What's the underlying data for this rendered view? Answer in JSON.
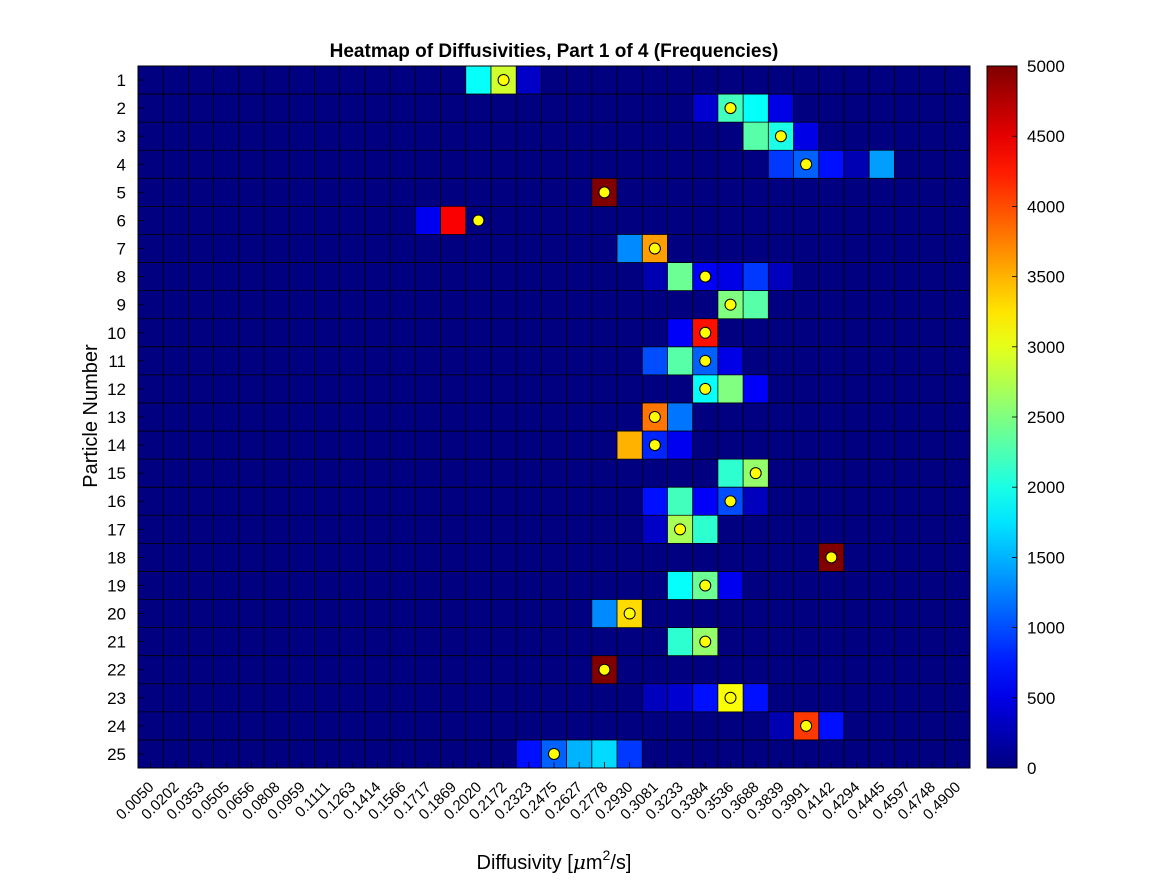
{
  "chart_data": {
    "type": "heatmap",
    "title": "Heatmap of Diffusivities, Part 1 of 4 (Frequencies)",
    "xlabel": "Diffusivity [μm²/s]",
    "xlabel_parts": {
      "pre": "Diffusivity [",
      "mu": "μ",
      "unit": "m",
      "sup": "2",
      "post": "/s]"
    },
    "ylabel": "Particle Number",
    "x_tick_labels": [
      "0.0050",
      "0.0202",
      "0.0353",
      "0.0505",
      "0.0656",
      "0.0808",
      "0.0959",
      "0.1111",
      "0.1263",
      "0.1414",
      "0.1566",
      "0.1717",
      "0.1869",
      "0.2020",
      "0.2172",
      "0.2323",
      "0.2475",
      "0.2627",
      "0.2778",
      "0.2930",
      "0.3081",
      "0.3233",
      "0.3384",
      "0.3536",
      "0.3688",
      "0.3839",
      "0.3991",
      "0.4142",
      "0.4294",
      "0.4445",
      "0.4597",
      "0.4748",
      "0.4900"
    ],
    "y_tick_labels": [
      "1",
      "2",
      "3",
      "4",
      "5",
      "6",
      "7",
      "8",
      "9",
      "10",
      "11",
      "12",
      "13",
      "14",
      "15",
      "16",
      "17",
      "18",
      "19",
      "20",
      "21",
      "22",
      "23",
      "24",
      "25"
    ],
    "colorbar": {
      "min": 0,
      "max": 5000,
      "ticks": [
        0,
        500,
        1000,
        1500,
        2000,
        2500,
        3000,
        3500,
        4000,
        4500,
        5000
      ],
      "colormap": "jet"
    },
    "cells": [
      {
        "row": 1,
        "col": 14,
        "value": 1900
      },
      {
        "row": 1,
        "col": 15,
        "value": 2900
      },
      {
        "row": 1,
        "col": 16,
        "value": 350
      },
      {
        "row": 2,
        "col": 23,
        "value": 400
      },
      {
        "row": 2,
        "col": 24,
        "value": 2200
      },
      {
        "row": 2,
        "col": 25,
        "value": 1900
      },
      {
        "row": 2,
        "col": 26,
        "value": 500
      },
      {
        "row": 3,
        "col": 25,
        "value": 2300
      },
      {
        "row": 3,
        "col": 26,
        "value": 2000
      },
      {
        "row": 3,
        "col": 27,
        "value": 500
      },
      {
        "row": 4,
        "col": 26,
        "value": 900
      },
      {
        "row": 4,
        "col": 27,
        "value": 1100
      },
      {
        "row": 4,
        "col": 28,
        "value": 700
      },
      {
        "row": 4,
        "col": 29,
        "value": 250
      },
      {
        "row": 4,
        "col": 30,
        "value": 1400
      },
      {
        "row": 5,
        "col": 19,
        "value": 5000
      },
      {
        "row": 6,
        "col": 12,
        "value": 550
      },
      {
        "row": 6,
        "col": 13,
        "value": 4400
      },
      {
        "row": 7,
        "col": 20,
        "value": 1300
      },
      {
        "row": 7,
        "col": 21,
        "value": 3600
      },
      {
        "row": 8,
        "col": 21,
        "value": 250
      },
      {
        "row": 8,
        "col": 22,
        "value": 2400
      },
      {
        "row": 8,
        "col": 23,
        "value": 600
      },
      {
        "row": 8,
        "col": 24,
        "value": 500
      },
      {
        "row": 8,
        "col": 25,
        "value": 900
      },
      {
        "row": 8,
        "col": 26,
        "value": 300
      },
      {
        "row": 9,
        "col": 24,
        "value": 2500
      },
      {
        "row": 9,
        "col": 25,
        "value": 2300
      },
      {
        "row": 10,
        "col": 22,
        "value": 600
      },
      {
        "row": 10,
        "col": 23,
        "value": 4300
      },
      {
        "row": 11,
        "col": 21,
        "value": 1000
      },
      {
        "row": 11,
        "col": 22,
        "value": 2300
      },
      {
        "row": 11,
        "col": 23,
        "value": 1100
      },
      {
        "row": 11,
        "col": 24,
        "value": 500
      },
      {
        "row": 12,
        "col": 23,
        "value": 1900
      },
      {
        "row": 12,
        "col": 24,
        "value": 2500
      },
      {
        "row": 12,
        "col": 25,
        "value": 600
      },
      {
        "row": 13,
        "col": 21,
        "value": 3800
      },
      {
        "row": 13,
        "col": 22,
        "value": 1200
      },
      {
        "row": 14,
        "col": 20,
        "value": 3500
      },
      {
        "row": 14,
        "col": 21,
        "value": 800
      },
      {
        "row": 14,
        "col": 22,
        "value": 550
      },
      {
        "row": 15,
        "col": 24,
        "value": 2100
      },
      {
        "row": 15,
        "col": 25,
        "value": 2600
      },
      {
        "row": 16,
        "col": 21,
        "value": 700
      },
      {
        "row": 16,
        "col": 22,
        "value": 2200
      },
      {
        "row": 16,
        "col": 23,
        "value": 600
      },
      {
        "row": 16,
        "col": 24,
        "value": 1000
      },
      {
        "row": 16,
        "col": 25,
        "value": 300
      },
      {
        "row": 17,
        "col": 21,
        "value": 350
      },
      {
        "row": 17,
        "col": 22,
        "value": 2700
      },
      {
        "row": 17,
        "col": 23,
        "value": 2100
      },
      {
        "row": 18,
        "col": 28,
        "value": 5000
      },
      {
        "row": 19,
        "col": 22,
        "value": 1900
      },
      {
        "row": 19,
        "col": 23,
        "value": 2400
      },
      {
        "row": 19,
        "col": 24,
        "value": 550
      },
      {
        "row": 20,
        "col": 19,
        "value": 1300
      },
      {
        "row": 20,
        "col": 20,
        "value": 3300
      },
      {
        "row": 21,
        "col": 22,
        "value": 2100
      },
      {
        "row": 21,
        "col": 23,
        "value": 2600
      },
      {
        "row": 22,
        "col": 19,
        "value": 5000
      },
      {
        "row": 23,
        "col": 21,
        "value": 300
      },
      {
        "row": 23,
        "col": 22,
        "value": 400
      },
      {
        "row": 23,
        "col": 23,
        "value": 700
      },
      {
        "row": 23,
        "col": 24,
        "value": 3100
      },
      {
        "row": 23,
        "col": 25,
        "value": 700
      },
      {
        "row": 24,
        "col": 26,
        "value": 250
      },
      {
        "row": 24,
        "col": 27,
        "value": 4100
      },
      {
        "row": 24,
        "col": 28,
        "value": 700
      },
      {
        "row": 25,
        "col": 16,
        "value": 700
      },
      {
        "row": 25,
        "col": 17,
        "value": 1100
      },
      {
        "row": 25,
        "col": 18,
        "value": 1500
      },
      {
        "row": 25,
        "col": 19,
        "value": 1700
      },
      {
        "row": 25,
        "col": 20,
        "value": 900
      }
    ],
    "markers": [
      {
        "row": 1,
        "x": 15
      },
      {
        "row": 2,
        "x": 24
      },
      {
        "row": 3,
        "x": 26
      },
      {
        "row": 4,
        "x": 27
      },
      {
        "row": 5,
        "x": 19
      },
      {
        "row": 6,
        "x": 14
      },
      {
        "row": 7,
        "x": 21
      },
      {
        "row": 8,
        "x": 23
      },
      {
        "row": 9,
        "x": 24
      },
      {
        "row": 10,
        "x": 23
      },
      {
        "row": 11,
        "x": 23
      },
      {
        "row": 12,
        "x": 23
      },
      {
        "row": 13,
        "x": 21
      },
      {
        "row": 14,
        "x": 21
      },
      {
        "row": 15,
        "x": 25
      },
      {
        "row": 16,
        "x": 24
      },
      {
        "row": 17,
        "x": 22
      },
      {
        "row": 18,
        "x": 28
      },
      {
        "row": 19,
        "x": 23
      },
      {
        "row": 20,
        "x": 20
      },
      {
        "row": 21,
        "x": 23
      },
      {
        "row": 22,
        "x": 19
      },
      {
        "row": 23,
        "x": 24
      },
      {
        "row": 24,
        "x": 27
      },
      {
        "row": 25,
        "x": 17
      }
    ],
    "marker_color": "#ffff00",
    "grid": true,
    "legend": "none"
  }
}
